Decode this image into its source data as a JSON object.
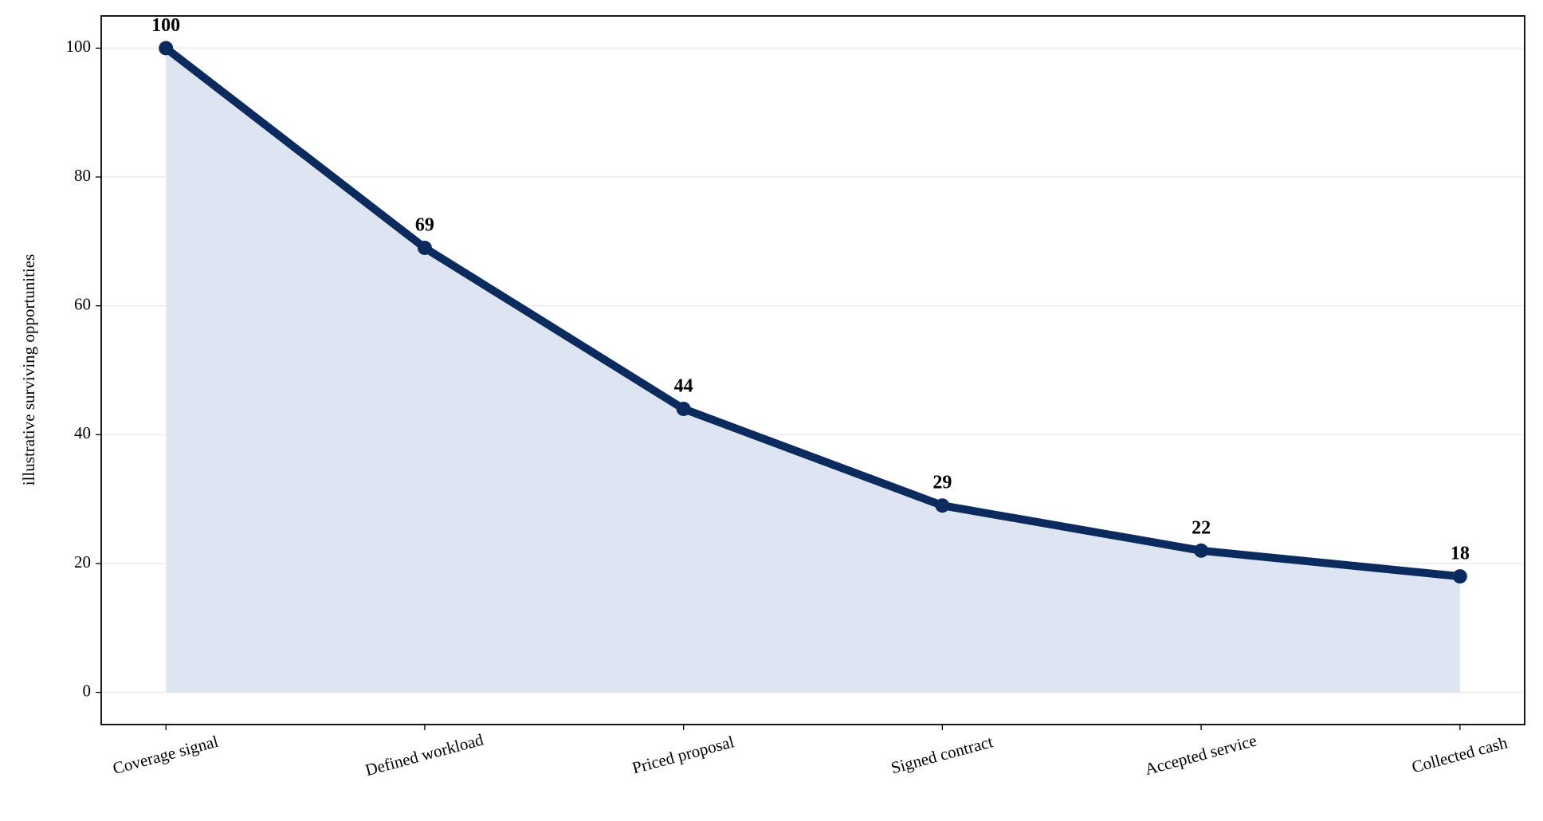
{
  "chart_data": {
    "type": "line",
    "y_label": "illustrative surviving opportunities",
    "categories": [
      "Coverage signal",
      "Defined workload",
      "Priced proposal",
      "Signed contract",
      "Accepted service",
      "Collected cash"
    ],
    "values": [
      100,
      69,
      44,
      29,
      22,
      18
    ],
    "color": "#0b2a5e",
    "fill_color": "#dce5f1",
    "fill": true,
    "ylim": [
      -5,
      105
    ],
    "yticks": [
      0,
      20,
      40,
      60,
      80,
      100
    ],
    "grid": true
  }
}
